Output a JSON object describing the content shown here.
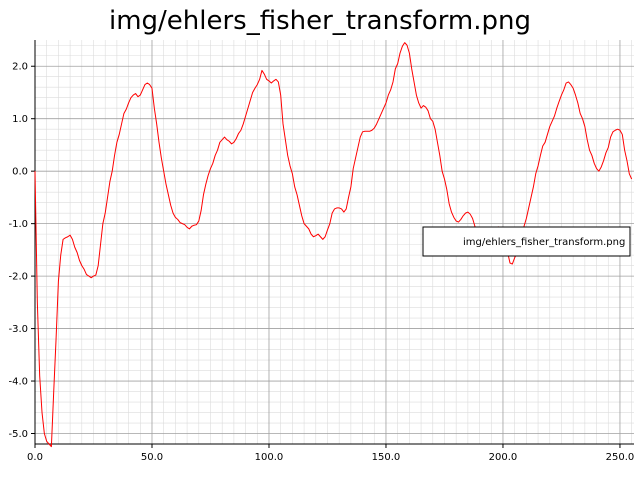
{
  "chart_data": {
    "type": "line",
    "title": "img/ehlers_fisher_transform.png",
    "xlabel": "",
    "ylabel": "",
    "xlim": [
      0,
      256
    ],
    "ylim": [
      -5.2,
      2.5
    ],
    "x_ticks": [
      0,
      50,
      100,
      150,
      200,
      250
    ],
    "x_tick_labels": [
      "0.0",
      "50.0",
      "100.0",
      "150.0",
      "200.0",
      "250.0"
    ],
    "y_ticks": [
      2,
      1,
      0,
      -1,
      -2,
      -3,
      -4,
      -5
    ],
    "y_tick_labels": [
      "2.0",
      "1.0",
      "0.0",
      "-1.0",
      "-2.0",
      "-3.0",
      "-4.0",
      "-5.0"
    ],
    "grid": true,
    "legend_position": "right",
    "series": [
      {
        "name": "img/ehlers_fisher_transform.png",
        "color": "#ff0000",
        "points": [
          [
            0,
            0.0
          ],
          [
            1,
            -2.5
          ],
          [
            2,
            -3.9
          ],
          [
            3,
            -4.6
          ],
          [
            4,
            -5.0
          ],
          [
            5,
            -5.15
          ],
          [
            6,
            -5.2
          ],
          [
            7,
            -5.25
          ],
          [
            8,
            -4.2
          ],
          [
            9,
            -3.2
          ],
          [
            10,
            -2.1
          ],
          [
            11,
            -1.6
          ],
          [
            12,
            -1.3
          ],
          [
            13,
            -1.27
          ],
          [
            14,
            -1.25
          ],
          [
            15,
            -1.22
          ],
          [
            16,
            -1.3
          ],
          [
            17,
            -1.45
          ],
          [
            18,
            -1.55
          ],
          [
            19,
            -1.7
          ],
          [
            20,
            -1.8
          ],
          [
            21,
            -1.87
          ],
          [
            22,
            -1.97
          ],
          [
            23,
            -2.0
          ],
          [
            24,
            -2.03
          ],
          [
            25,
            -2.0
          ],
          [
            26,
            -1.98
          ],
          [
            27,
            -1.8
          ],
          [
            28,
            -1.4
          ],
          [
            29,
            -1.0
          ],
          [
            30,
            -0.8
          ],
          [
            31,
            -0.5
          ],
          [
            32,
            -0.2
          ],
          [
            33,
            0.0
          ],
          [
            34,
            0.3
          ],
          [
            35,
            0.55
          ],
          [
            36,
            0.7
          ],
          [
            37,
            0.9
          ],
          [
            38,
            1.1
          ],
          [
            39,
            1.18
          ],
          [
            40,
            1.3
          ],
          [
            41,
            1.4
          ],
          [
            42,
            1.45
          ],
          [
            43,
            1.48
          ],
          [
            44,
            1.42
          ],
          [
            45,
            1.45
          ],
          [
            46,
            1.55
          ],
          [
            47,
            1.65
          ],
          [
            48,
            1.68
          ],
          [
            49,
            1.65
          ],
          [
            50,
            1.58
          ],
          [
            51,
            1.2
          ],
          [
            52,
            0.9
          ],
          [
            53,
            0.55
          ],
          [
            54,
            0.25
          ],
          [
            55,
            0.0
          ],
          [
            56,
            -0.25
          ],
          [
            57,
            -0.45
          ],
          [
            58,
            -0.65
          ],
          [
            59,
            -0.8
          ],
          [
            60,
            -0.88
          ],
          [
            61,
            -0.92
          ],
          [
            62,
            -0.98
          ],
          [
            63,
            -1.0
          ],
          [
            64,
            -1.02
          ],
          [
            65,
            -1.07
          ],
          [
            66,
            -1.1
          ],
          [
            67,
            -1.05
          ],
          [
            68,
            -1.03
          ],
          [
            69,
            -1.02
          ],
          [
            70,
            -0.95
          ],
          [
            71,
            -0.75
          ],
          [
            72,
            -0.45
          ],
          [
            73,
            -0.25
          ],
          [
            74,
            -0.08
          ],
          [
            75,
            0.05
          ],
          [
            76,
            0.15
          ],
          [
            77,
            0.3
          ],
          [
            78,
            0.4
          ],
          [
            79,
            0.55
          ],
          [
            80,
            0.6
          ],
          [
            81,
            0.65
          ],
          [
            82,
            0.6
          ],
          [
            83,
            0.57
          ],
          [
            84,
            0.52
          ],
          [
            85,
            0.55
          ],
          [
            86,
            0.62
          ],
          [
            87,
            0.72
          ],
          [
            88,
            0.78
          ],
          [
            89,
            0.9
          ],
          [
            90,
            1.05
          ],
          [
            91,
            1.2
          ],
          [
            92,
            1.35
          ],
          [
            93,
            1.5
          ],
          [
            94,
            1.58
          ],
          [
            95,
            1.65
          ],
          [
            96,
            1.75
          ],
          [
            97,
            1.92
          ],
          [
            98,
            1.85
          ],
          [
            99,
            1.75
          ],
          [
            100,
            1.72
          ],
          [
            101,
            1.68
          ],
          [
            102,
            1.72
          ],
          [
            103,
            1.75
          ],
          [
            104,
            1.7
          ],
          [
            105,
            1.45
          ],
          [
            106,
            0.9
          ],
          [
            107,
            0.6
          ],
          [
            108,
            0.3
          ],
          [
            109,
            0.1
          ],
          [
            110,
            -0.05
          ],
          [
            111,
            -0.3
          ],
          [
            112,
            -0.45
          ],
          [
            113,
            -0.65
          ],
          [
            114,
            -0.85
          ],
          [
            115,
            -1.0
          ],
          [
            116,
            -1.05
          ],
          [
            117,
            -1.1
          ],
          [
            118,
            -1.2
          ],
          [
            119,
            -1.25
          ],
          [
            120,
            -1.23
          ],
          [
            121,
            -1.2
          ],
          [
            122,
            -1.25
          ],
          [
            123,
            -1.3
          ],
          [
            124,
            -1.25
          ],
          [
            125,
            -1.12
          ],
          [
            126,
            -1.0
          ],
          [
            127,
            -0.8
          ],
          [
            128,
            -0.72
          ],
          [
            129,
            -0.7
          ],
          [
            130,
            -0.7
          ],
          [
            131,
            -0.72
          ],
          [
            132,
            -0.78
          ],
          [
            133,
            -0.72
          ],
          [
            134,
            -0.5
          ],
          [
            135,
            -0.3
          ],
          [
            136,
            0.05
          ],
          [
            137,
            0.25
          ],
          [
            138,
            0.45
          ],
          [
            139,
            0.65
          ],
          [
            140,
            0.75
          ],
          [
            141,
            0.76
          ],
          [
            142,
            0.76
          ],
          [
            143,
            0.76
          ],
          [
            144,
            0.78
          ],
          [
            145,
            0.82
          ],
          [
            146,
            0.9
          ],
          [
            147,
            1.0
          ],
          [
            148,
            1.1
          ],
          [
            149,
            1.2
          ],
          [
            150,
            1.3
          ],
          [
            151,
            1.45
          ],
          [
            152,
            1.55
          ],
          [
            153,
            1.7
          ],
          [
            154,
            1.95
          ],
          [
            155,
            2.05
          ],
          [
            156,
            2.25
          ],
          [
            157,
            2.38
          ],
          [
            158,
            2.45
          ],
          [
            159,
            2.4
          ],
          [
            160,
            2.25
          ],
          [
            161,
            1.95
          ],
          [
            162,
            1.7
          ],
          [
            163,
            1.45
          ],
          [
            164,
            1.3
          ],
          [
            165,
            1.2
          ],
          [
            166,
            1.25
          ],
          [
            167,
            1.22
          ],
          [
            168,
            1.15
          ],
          [
            169,
            1.0
          ],
          [
            170,
            0.95
          ],
          [
            171,
            0.8
          ],
          [
            172,
            0.55
          ],
          [
            173,
            0.3
          ],
          [
            174,
            0.0
          ],
          [
            175,
            -0.15
          ],
          [
            176,
            -0.35
          ],
          [
            177,
            -0.62
          ],
          [
            178,
            -0.78
          ],
          [
            179,
            -0.88
          ],
          [
            180,
            -0.95
          ],
          [
            181,
            -0.97
          ],
          [
            182,
            -0.92
          ],
          [
            183,
            -0.85
          ],
          [
            184,
            -0.8
          ],
          [
            185,
            -0.78
          ],
          [
            186,
            -0.82
          ],
          [
            187,
            -0.9
          ],
          [
            188,
            -1.05
          ],
          [
            189,
            -1.2
          ],
          [
            190,
            -1.28
          ],
          [
            191,
            -1.32
          ],
          [
            192,
            -1.33
          ],
          [
            193,
            -1.32
          ],
          [
            194,
            -1.3
          ],
          [
            195,
            -1.25
          ],
          [
            196,
            -1.15
          ],
          [
            197,
            -1.1
          ],
          [
            198,
            -1.06
          ],
          [
            199,
            -1.08
          ],
          [
            200,
            -1.15
          ],
          [
            201,
            -1.35
          ],
          [
            202,
            -1.55
          ],
          [
            203,
            -1.75
          ],
          [
            204,
            -1.77
          ],
          [
            205,
            -1.65
          ],
          [
            206,
            -1.55
          ],
          [
            207,
            -1.4
          ],
          [
            208,
            -1.2
          ],
          [
            209,
            -1.05
          ],
          [
            210,
            -0.9
          ],
          [
            211,
            -0.7
          ],
          [
            212,
            -0.5
          ],
          [
            213,
            -0.3
          ],
          [
            214,
            -0.05
          ],
          [
            215,
            0.1
          ],
          [
            216,
            0.3
          ],
          [
            217,
            0.48
          ],
          [
            218,
            0.55
          ],
          [
            219,
            0.7
          ],
          [
            220,
            0.85
          ],
          [
            221,
            0.95
          ],
          [
            222,
            1.05
          ],
          [
            223,
            1.2
          ],
          [
            224,
            1.33
          ],
          [
            225,
            1.45
          ],
          [
            226,
            1.55
          ],
          [
            227,
            1.68
          ],
          [
            228,
            1.7
          ],
          [
            229,
            1.65
          ],
          [
            230,
            1.58
          ],
          [
            231,
            1.45
          ],
          [
            232,
            1.3
          ],
          [
            233,
            1.1
          ],
          [
            234,
            1.0
          ],
          [
            235,
            0.85
          ],
          [
            236,
            0.6
          ],
          [
            237,
            0.4
          ],
          [
            238,
            0.3
          ],
          [
            239,
            0.15
          ],
          [
            240,
            0.05
          ],
          [
            241,
            0.0
          ],
          [
            242,
            0.08
          ],
          [
            243,
            0.2
          ],
          [
            244,
            0.35
          ],
          [
            245,
            0.45
          ],
          [
            246,
            0.65
          ],
          [
            247,
            0.75
          ],
          [
            248,
            0.78
          ],
          [
            249,
            0.8
          ],
          [
            250,
            0.78
          ],
          [
            251,
            0.7
          ],
          [
            252,
            0.4
          ],
          [
            253,
            0.2
          ],
          [
            254,
            -0.05
          ],
          [
            255,
            -0.15
          ]
        ]
      }
    ]
  }
}
